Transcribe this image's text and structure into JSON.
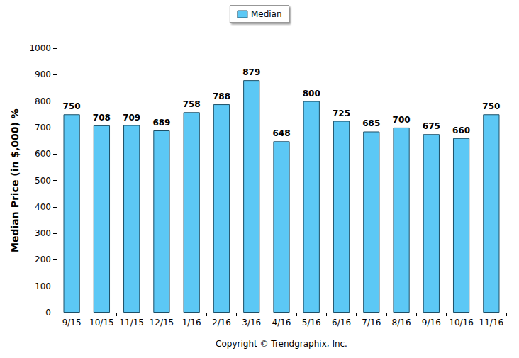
{
  "chart_data": {
    "type": "bar",
    "legend_label": "Median",
    "ylabel": "Median Price (in $,000) %",
    "xlabel": "Copyright © Trendgraphix, Inc.",
    "categories": [
      "9/15",
      "10/15",
      "11/15",
      "12/15",
      "1/16",
      "2/16",
      "3/16",
      "4/16",
      "5/16",
      "6/16",
      "7/16",
      "8/16",
      "9/16",
      "10/16",
      "11/16"
    ],
    "series": [
      {
        "name": "Median",
        "color": "#5cc8f5",
        "values": [
          750,
          708,
          709,
          689,
          758,
          788,
          879,
          648,
          800,
          725,
          685,
          700,
          675,
          660,
          750
        ]
      }
    ],
    "ylim": [
      0,
      1000
    ],
    "yticks": [
      0,
      100,
      200,
      300,
      400,
      500,
      600,
      700,
      800,
      900,
      1000
    ],
    "grid": false,
    "legend": "top",
    "data_labels": true
  }
}
